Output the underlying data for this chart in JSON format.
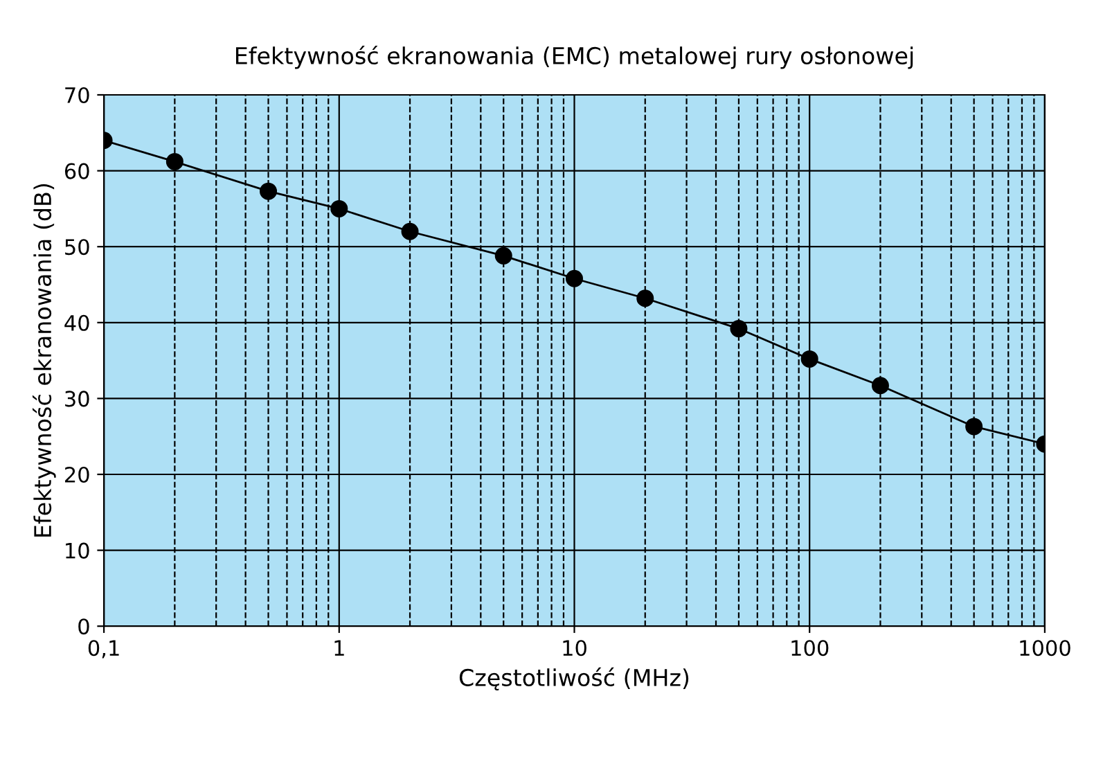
{
  "chart_data": {
    "type": "line",
    "title": "Efektywność ekranowania (EMC) metalowej rury osłonowej",
    "xlabel": "Częstotliwość (MHz)",
    "ylabel": "Efektywność ekranowania (dB)",
    "x": [
      0.1,
      0.2,
      0.5,
      1,
      2,
      5,
      10,
      20,
      50,
      100,
      200,
      500,
      1000
    ],
    "series": [
      {
        "color": "#000000",
        "values": [
          64,
          61.2,
          57.3,
          55,
          52,
          48.8,
          45.8,
          43.2,
          39.2,
          35.2,
          31.7,
          26.3,
          24
        ]
      }
    ],
    "xlim": [
      0.1,
      1000
    ],
    "ylim": [
      0,
      70
    ],
    "xticks": [
      {
        "value": 0.1,
        "label": "0,1"
      },
      1,
      10,
      100,
      1000
    ],
    "yticks": [
      0,
      10,
      20,
      30,
      40,
      50,
      60,
      70
    ],
    "log": "x",
    "grid": true,
    "marker": "circle",
    "line_style": "solid"
  }
}
